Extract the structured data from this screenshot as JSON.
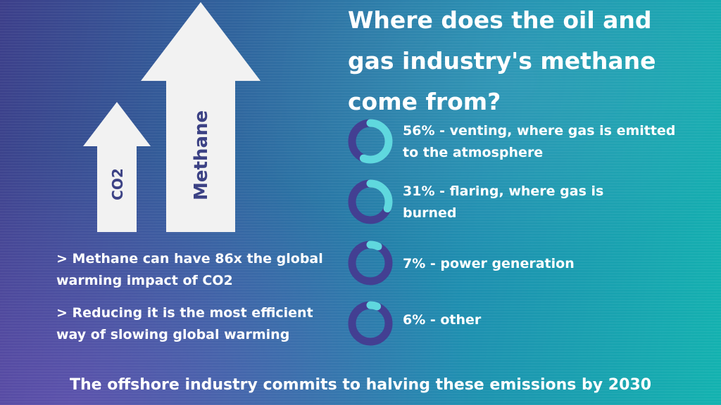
{
  "colors": {
    "arrow_fill": "#f2f2f2",
    "arrow_label": "#3c4285",
    "donut_track": "#433f92",
    "donut_fill": "#5fd8de"
  },
  "arrows": {
    "co2_label": "CO2",
    "methane_label": "Methane"
  },
  "title": {
    "line1": "Where does the oil and",
    "line2": "gas industry's methane",
    "line3": "come from?"
  },
  "sources": [
    {
      "percent": 56,
      "line1": "56% - venting, where gas is emitted",
      "line2": "to the atmosphere"
    },
    {
      "percent": 31,
      "line1": "31% - flaring, where gas is",
      "line2": "burned"
    },
    {
      "percent": 7,
      "line1": "7% - power generation",
      "line2": ""
    },
    {
      "percent": 6,
      "line1": "6% - other",
      "line2": ""
    }
  ],
  "notes": [
    {
      "line1": "> Methane can have 86x the global",
      "line2": "warming impact of CO2"
    },
    {
      "line1": "> Reducing it is the most efficient",
      "line2": "way of slowing global warming"
    }
  ],
  "footer": "The offshore industry commits to halving these emissions by 2030"
}
